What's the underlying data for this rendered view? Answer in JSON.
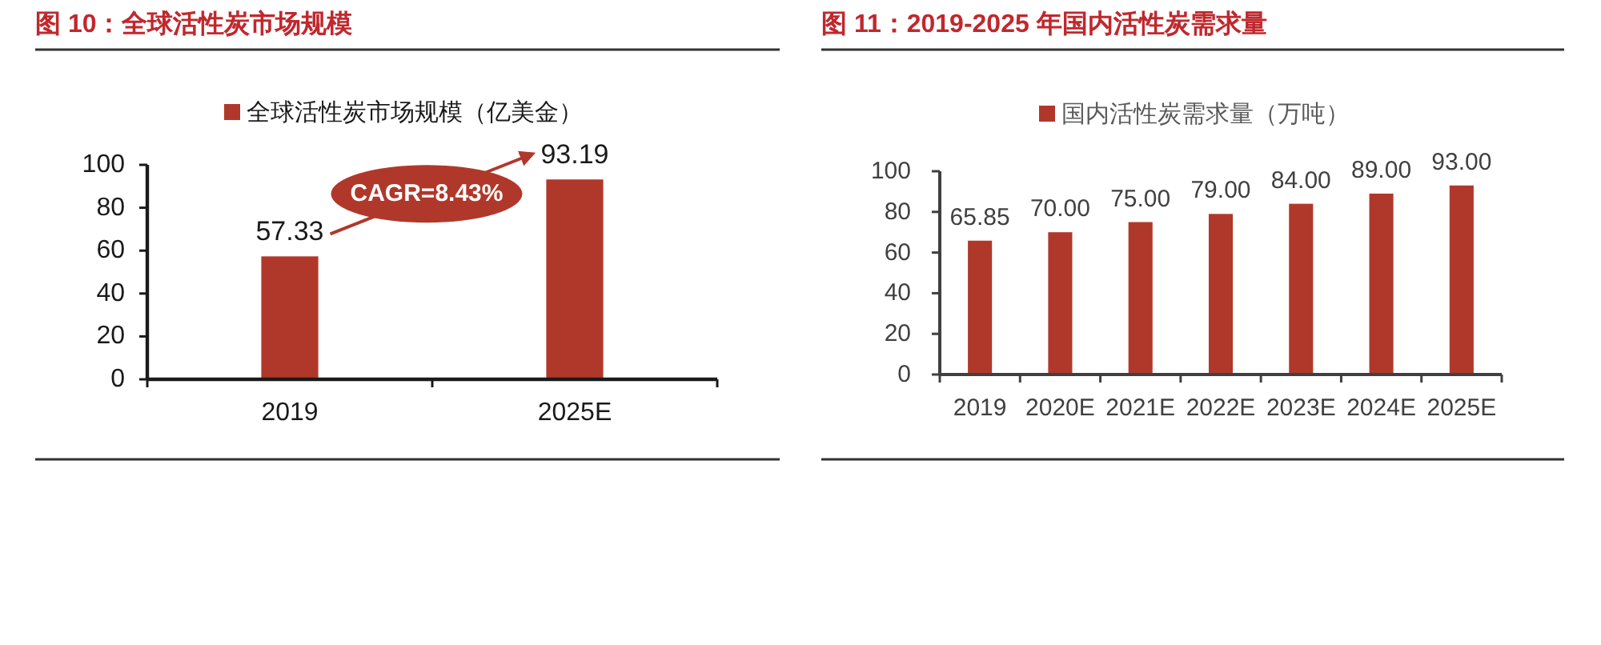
{
  "chart_data": [
    {
      "type": "bar",
      "title": "图 10：全球活性炭市场规模",
      "categories": [
        "2019",
        "2025E"
      ],
      "series": [
        {
          "name": "全球活性炭市场规模（亿美金）",
          "color": "#b0382b",
          "values": [
            57.33,
            93.19
          ]
        }
      ],
      "ylim": [
        0,
        100
      ],
      "yticks": [
        0,
        20,
        40,
        60,
        80,
        100
      ],
      "data_labels": true,
      "legend": "top",
      "annotations": [
        "CAGR=8.43%"
      ]
    },
    {
      "type": "bar",
      "title": "图 11：2019-2025 年国内活性炭需求量",
      "categories": [
        "2019",
        "2020E",
        "2021E",
        "2022E",
        "2023E",
        "2024E",
        "2025E"
      ],
      "series": [
        {
          "name": "国内活性炭需求量（万吨）",
          "color": "#b0382b",
          "values": [
            65.85,
            70,
            75,
            79,
            84,
            89,
            93
          ],
          "value_labels": [
            "65.85",
            "70.00",
            "75.00",
            "79.00",
            "84.00",
            "89.00",
            "93.00"
          ]
        }
      ],
      "ylim": [
        0,
        100
      ],
      "yticks": [
        0,
        20,
        40,
        60,
        80,
        100
      ],
      "legend": "top"
    }
  ]
}
